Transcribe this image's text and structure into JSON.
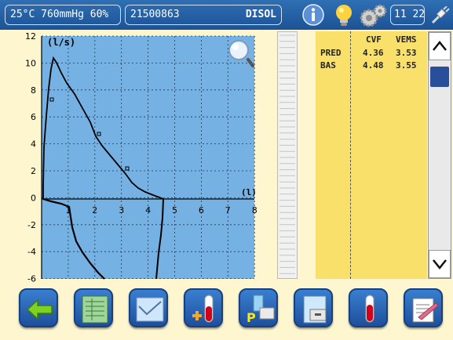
{
  "topbar": {
    "environment": "25°C 760mmHg 60%",
    "patient_id": "21500863",
    "patient_name": "DISOL",
    "time": "11 22"
  },
  "graph": {
    "y_unit": "(l/s)",
    "x_unit": "(l)",
    "y_ticks": [
      "12",
      "10",
      "8",
      "6",
      "4",
      "2",
      "0",
      "-2",
      "-4",
      "-6"
    ],
    "x_ticks": [
      "1",
      "2",
      "3",
      "4",
      "5",
      "6",
      "7",
      "8"
    ]
  },
  "table": {
    "headers": [
      "CVF",
      "VEMS"
    ],
    "rows": [
      {
        "label": "PRED",
        "cvf": "4.36",
        "vems": "3.53"
      },
      {
        "label": "BAS",
        "cvf": "4.48",
        "vems": "3.55"
      }
    ]
  },
  "icons": {
    "info": "info-icon",
    "bulb": "lightbulb-icon",
    "gears": "gears-icon",
    "connection": "plug-icon",
    "zoom": "magnifier-icon"
  },
  "colors": {
    "topbar": "#1f5599",
    "plot_bg": "#76b1e3",
    "panel": "#f8e06a",
    "background": "#fdf6cf"
  }
}
